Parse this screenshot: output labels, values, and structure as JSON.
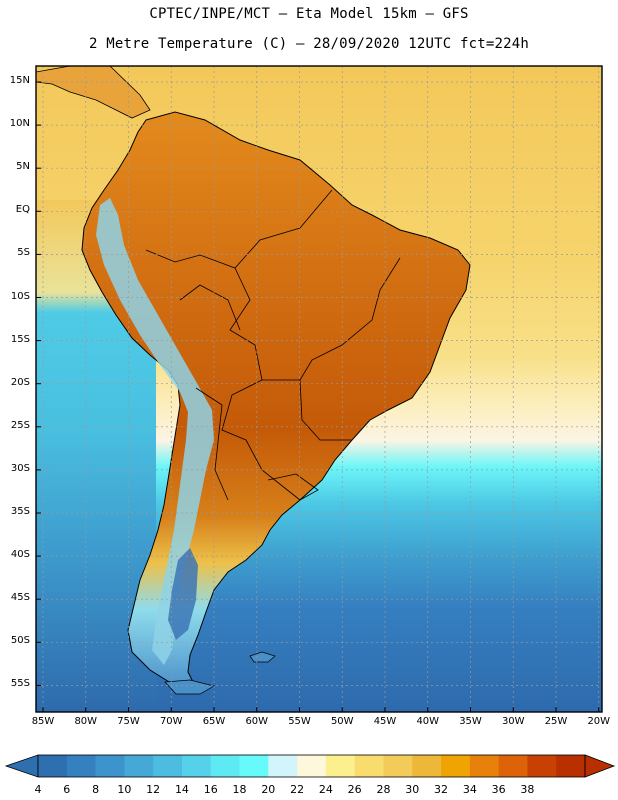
{
  "header": {
    "line1": "CPTEC/INPE/MCT –  Eta Model 15km – GFS",
    "line2": "2 Metre Temperature (C) – 28/09/2020 12UTC fct=224h"
  },
  "axes": {
    "lat_labels": [
      "15N",
      "10N",
      "5N",
      "EQ",
      "5S",
      "10S",
      "15S",
      "20S",
      "25S",
      "30S",
      "35S",
      "40S",
      "45S",
      "50S",
      "55S"
    ],
    "lon_labels": [
      "85W",
      "80W",
      "75W",
      "70W",
      "65W",
      "60W",
      "55W",
      "50W",
      "45W",
      "40W",
      "35W",
      "30W",
      "25W",
      "20W"
    ]
  },
  "legend": {
    "values": [
      "4",
      "6",
      "8",
      "10",
      "12",
      "14",
      "16",
      "18",
      "20",
      "22",
      "24",
      "26",
      "28",
      "30",
      "32",
      "34",
      "36",
      "38"
    ],
    "colors": [
      "#2e6fb0",
      "#3581c0",
      "#3d93cb",
      "#46a8d6",
      "#4cbce0",
      "#55d2ea",
      "#5eeaf3",
      "#66fafb",
      "#d2f5fb",
      "#fdf7dc",
      "#fcef8e",
      "#f8dd6e",
      "#f3cb59",
      "#edb83a",
      "#f0a404",
      "#e8800c",
      "#dd620a",
      "#c84104",
      "#b83000"
    ],
    "under_color": "#2e6fb0",
    "over_color": "#b83000"
  },
  "colors": {
    "ocean_north": "#f3cd60",
    "ocean_south_deep": "#2e6fb0",
    "land_hot": "#c9620c",
    "coastline": "#000000"
  }
}
